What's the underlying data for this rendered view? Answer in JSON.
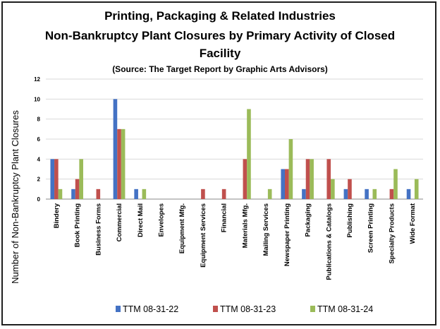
{
  "chart_data": {
    "type": "bar",
    "title_lines": [
      "Printing, Packaging & Related Industries",
      "Non-Bankruptcy Plant Closures by Primary Activity of Closed",
      "Facility"
    ],
    "subtitle": "(Source: The Target Report by Graphic Arts Advisors)",
    "ylabel": "Number of Non-Bankruptcy Plant Closures",
    "xlabel": "",
    "ylim": [
      0,
      12
    ],
    "yticks": [
      0,
      2,
      4,
      6,
      8,
      10,
      12
    ],
    "grid": true,
    "legend_position": "bottom",
    "categories": [
      "Bindery",
      "Book Printing",
      "Business Forms",
      "Commercial",
      "Direct Mail",
      "Envelopes",
      "Equipment Mfg.",
      "Equipment Services",
      "Financial",
      "Materials Mfg.",
      "Mailing Services",
      "Newspaper Printing",
      "Packaging",
      "Publications & Catalogs",
      "Publishing",
      "Screen Printing",
      "Specialty Products",
      "Wide Format"
    ],
    "series": [
      {
        "name": "TTM 08-31-22",
        "color": "#4472c4",
        "values": [
          4,
          1,
          0,
          10,
          1,
          0,
          0,
          0,
          0,
          0,
          0,
          3,
          1,
          0,
          1,
          1,
          0,
          1
        ]
      },
      {
        "name": "TTM 08-31-23",
        "color": "#c0504d",
        "values": [
          4,
          2,
          1,
          7,
          0,
          0,
          0,
          1,
          1,
          4,
          0,
          3,
          4,
          4,
          2,
          0,
          1,
          0
        ]
      },
      {
        "name": "TTM 08-31-24",
        "color": "#9bbb59",
        "values": [
          1,
          4,
          0,
          7,
          1,
          0,
          0,
          0,
          0,
          9,
          1,
          6,
          4,
          2,
          0,
          1,
          3,
          2
        ]
      }
    ]
  }
}
